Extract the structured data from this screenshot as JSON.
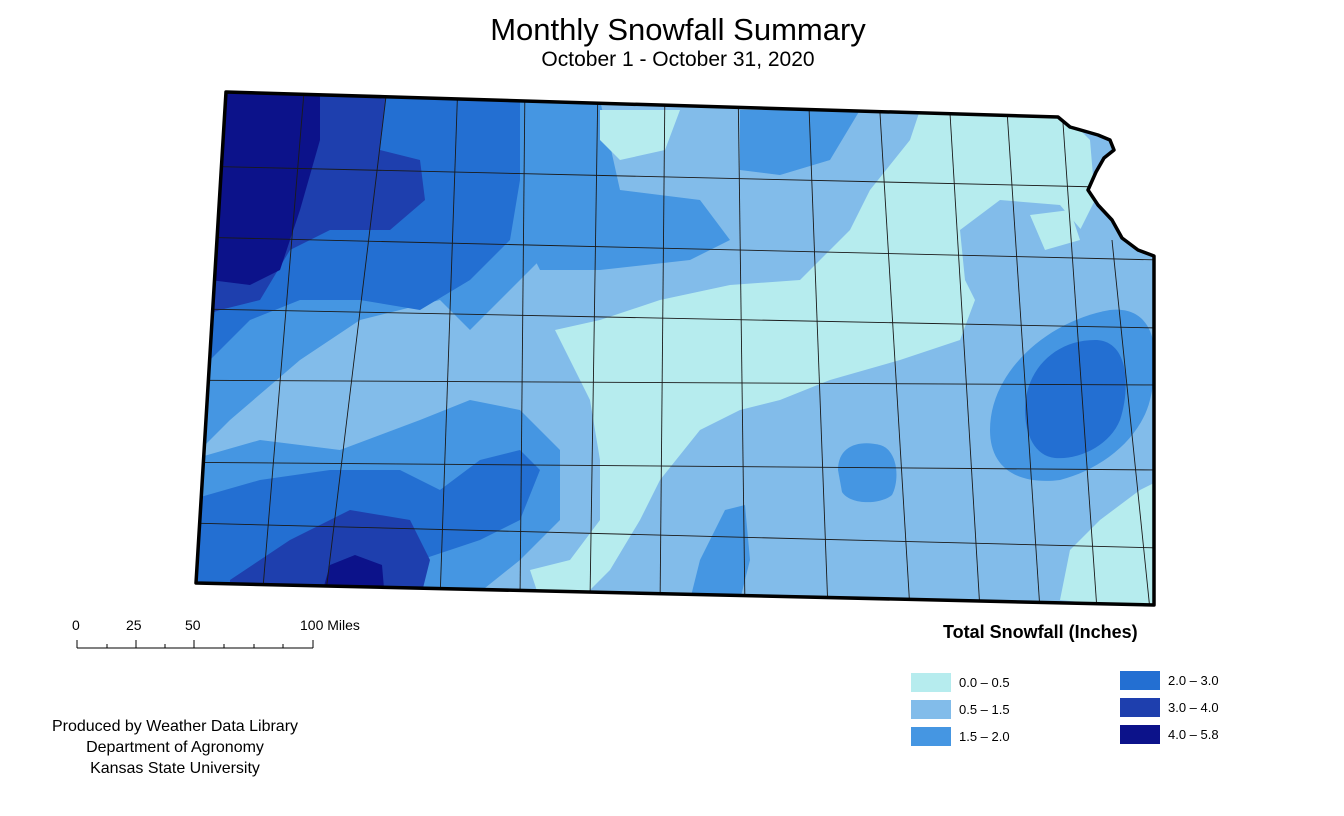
{
  "header": {
    "title": "Monthly Snowfall Summary",
    "subtitle": "October 1 - October 31, 2020"
  },
  "legend": {
    "title": "Total Snowfall (Inches)",
    "items": [
      {
        "label": "0.0 – 0.5",
        "color": "#b6ecee"
      },
      {
        "label": "0.5 – 1.5",
        "color": "#82bcea"
      },
      {
        "label": "1.5 – 2.0",
        "color": "#4596e2"
      },
      {
        "label": "2.0 – 3.0",
        "color": "#236fd2"
      },
      {
        "label": "3.0 – 4.0",
        "color": "#1e3fae"
      },
      {
        "label": "4.0 – 5.8",
        "color": "#0c128a"
      }
    ]
  },
  "scale_bar": {
    "labels": [
      "0",
      "25",
      "50",
      "100 Miles"
    ]
  },
  "credits": {
    "line1": "Produced by Weather Data Library",
    "line2": "Department of Agronomy",
    "line3": "Kansas State University"
  }
}
